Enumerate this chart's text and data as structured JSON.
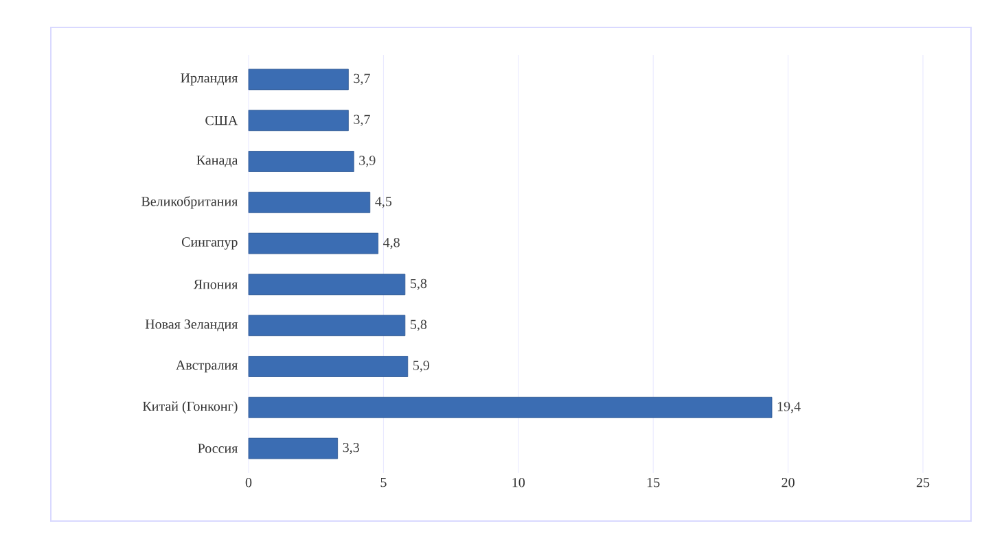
{
  "chart_data": {
    "type": "bar",
    "orientation": "horizontal",
    "categories": [
      "Ирландия",
      "США",
      "Канада",
      "Великобритания",
      "Сингапур",
      "Япония",
      "Новая Зеландия",
      "Австралия",
      "Китай (Гонконг)",
      "Россия"
    ],
    "values": [
      3.7,
      3.7,
      3.9,
      4.5,
      4.8,
      5.8,
      5.8,
      5.9,
      19.4,
      3.3
    ],
    "value_labels": [
      "3,7",
      "3,7",
      "3,9",
      "4,5",
      "4,8",
      "5,8",
      "5,8",
      "5,9",
      "19,4",
      "3,3"
    ],
    "color": "#3b6db3",
    "xlim": [
      0,
      25
    ],
    "xticks": [
      0,
      5,
      10,
      15,
      20,
      25
    ],
    "grid": "x"
  }
}
